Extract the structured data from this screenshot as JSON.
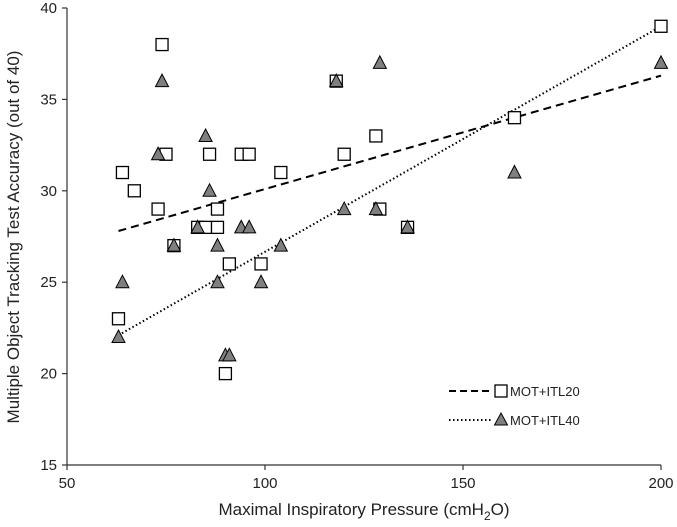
{
  "chart_data": {
    "type": "scatter",
    "title": "",
    "xlabel": "Maximal Inspiratory Pressure (cmH",
    "xlabel_sub": "2",
    "xlabel_end": "O)",
    "ylabel": "Multiple Object Tracking Test Accuracy (out of 40)",
    "xlim": [
      50,
      200
    ],
    "ylim": [
      15,
      40
    ],
    "xticks": [
      50,
      100,
      150,
      200
    ],
    "yticks": [
      15,
      20,
      25,
      30,
      35,
      40
    ],
    "grid": false,
    "legend_position": "bottom-right",
    "series": [
      {
        "name": "MOT+ITL20",
        "marker": "square",
        "color": "#ffffff",
        "trendline": "dashed",
        "trend": [
          [
            63,
            27.8
          ],
          [
            200,
            36.3
          ]
        ],
        "points": [
          [
            63,
            23
          ],
          [
            64,
            31
          ],
          [
            67,
            30
          ],
          [
            73,
            29
          ],
          [
            74,
            38
          ],
          [
            75,
            32
          ],
          [
            77,
            27
          ],
          [
            83,
            28
          ],
          [
            85,
            28
          ],
          [
            86,
            32
          ],
          [
            88,
            28
          ],
          [
            88,
            29
          ],
          [
            90,
            20
          ],
          [
            91,
            26
          ],
          [
            94,
            32
          ],
          [
            96,
            32
          ],
          [
            99,
            26
          ],
          [
            104,
            31
          ],
          [
            118,
            36
          ],
          [
            120,
            32
          ],
          [
            128,
            33
          ],
          [
            129,
            29
          ],
          [
            136,
            28
          ],
          [
            163,
            34
          ],
          [
            200,
            39
          ]
        ]
      },
      {
        "name": "MOT+ITL40",
        "marker": "triangle",
        "color": "#7f7f7f",
        "trendline": "dotted",
        "trend": [
          [
            63,
            22.1
          ],
          [
            200,
            39
          ]
        ],
        "points": [
          [
            63,
            22
          ],
          [
            64,
            25
          ],
          [
            73,
            32
          ],
          [
            74,
            36
          ],
          [
            77,
            27
          ],
          [
            83,
            28
          ],
          [
            85,
            33
          ],
          [
            86,
            30
          ],
          [
            88,
            25
          ],
          [
            88,
            27
          ],
          [
            90,
            21
          ],
          [
            91,
            21
          ],
          [
            94,
            28
          ],
          [
            96,
            28
          ],
          [
            99,
            25
          ],
          [
            104,
            27
          ],
          [
            118,
            36
          ],
          [
            120,
            29
          ],
          [
            128,
            29
          ],
          [
            129,
            37
          ],
          [
            136,
            28
          ],
          [
            163,
            31
          ],
          [
            200,
            37
          ]
        ]
      }
    ]
  }
}
